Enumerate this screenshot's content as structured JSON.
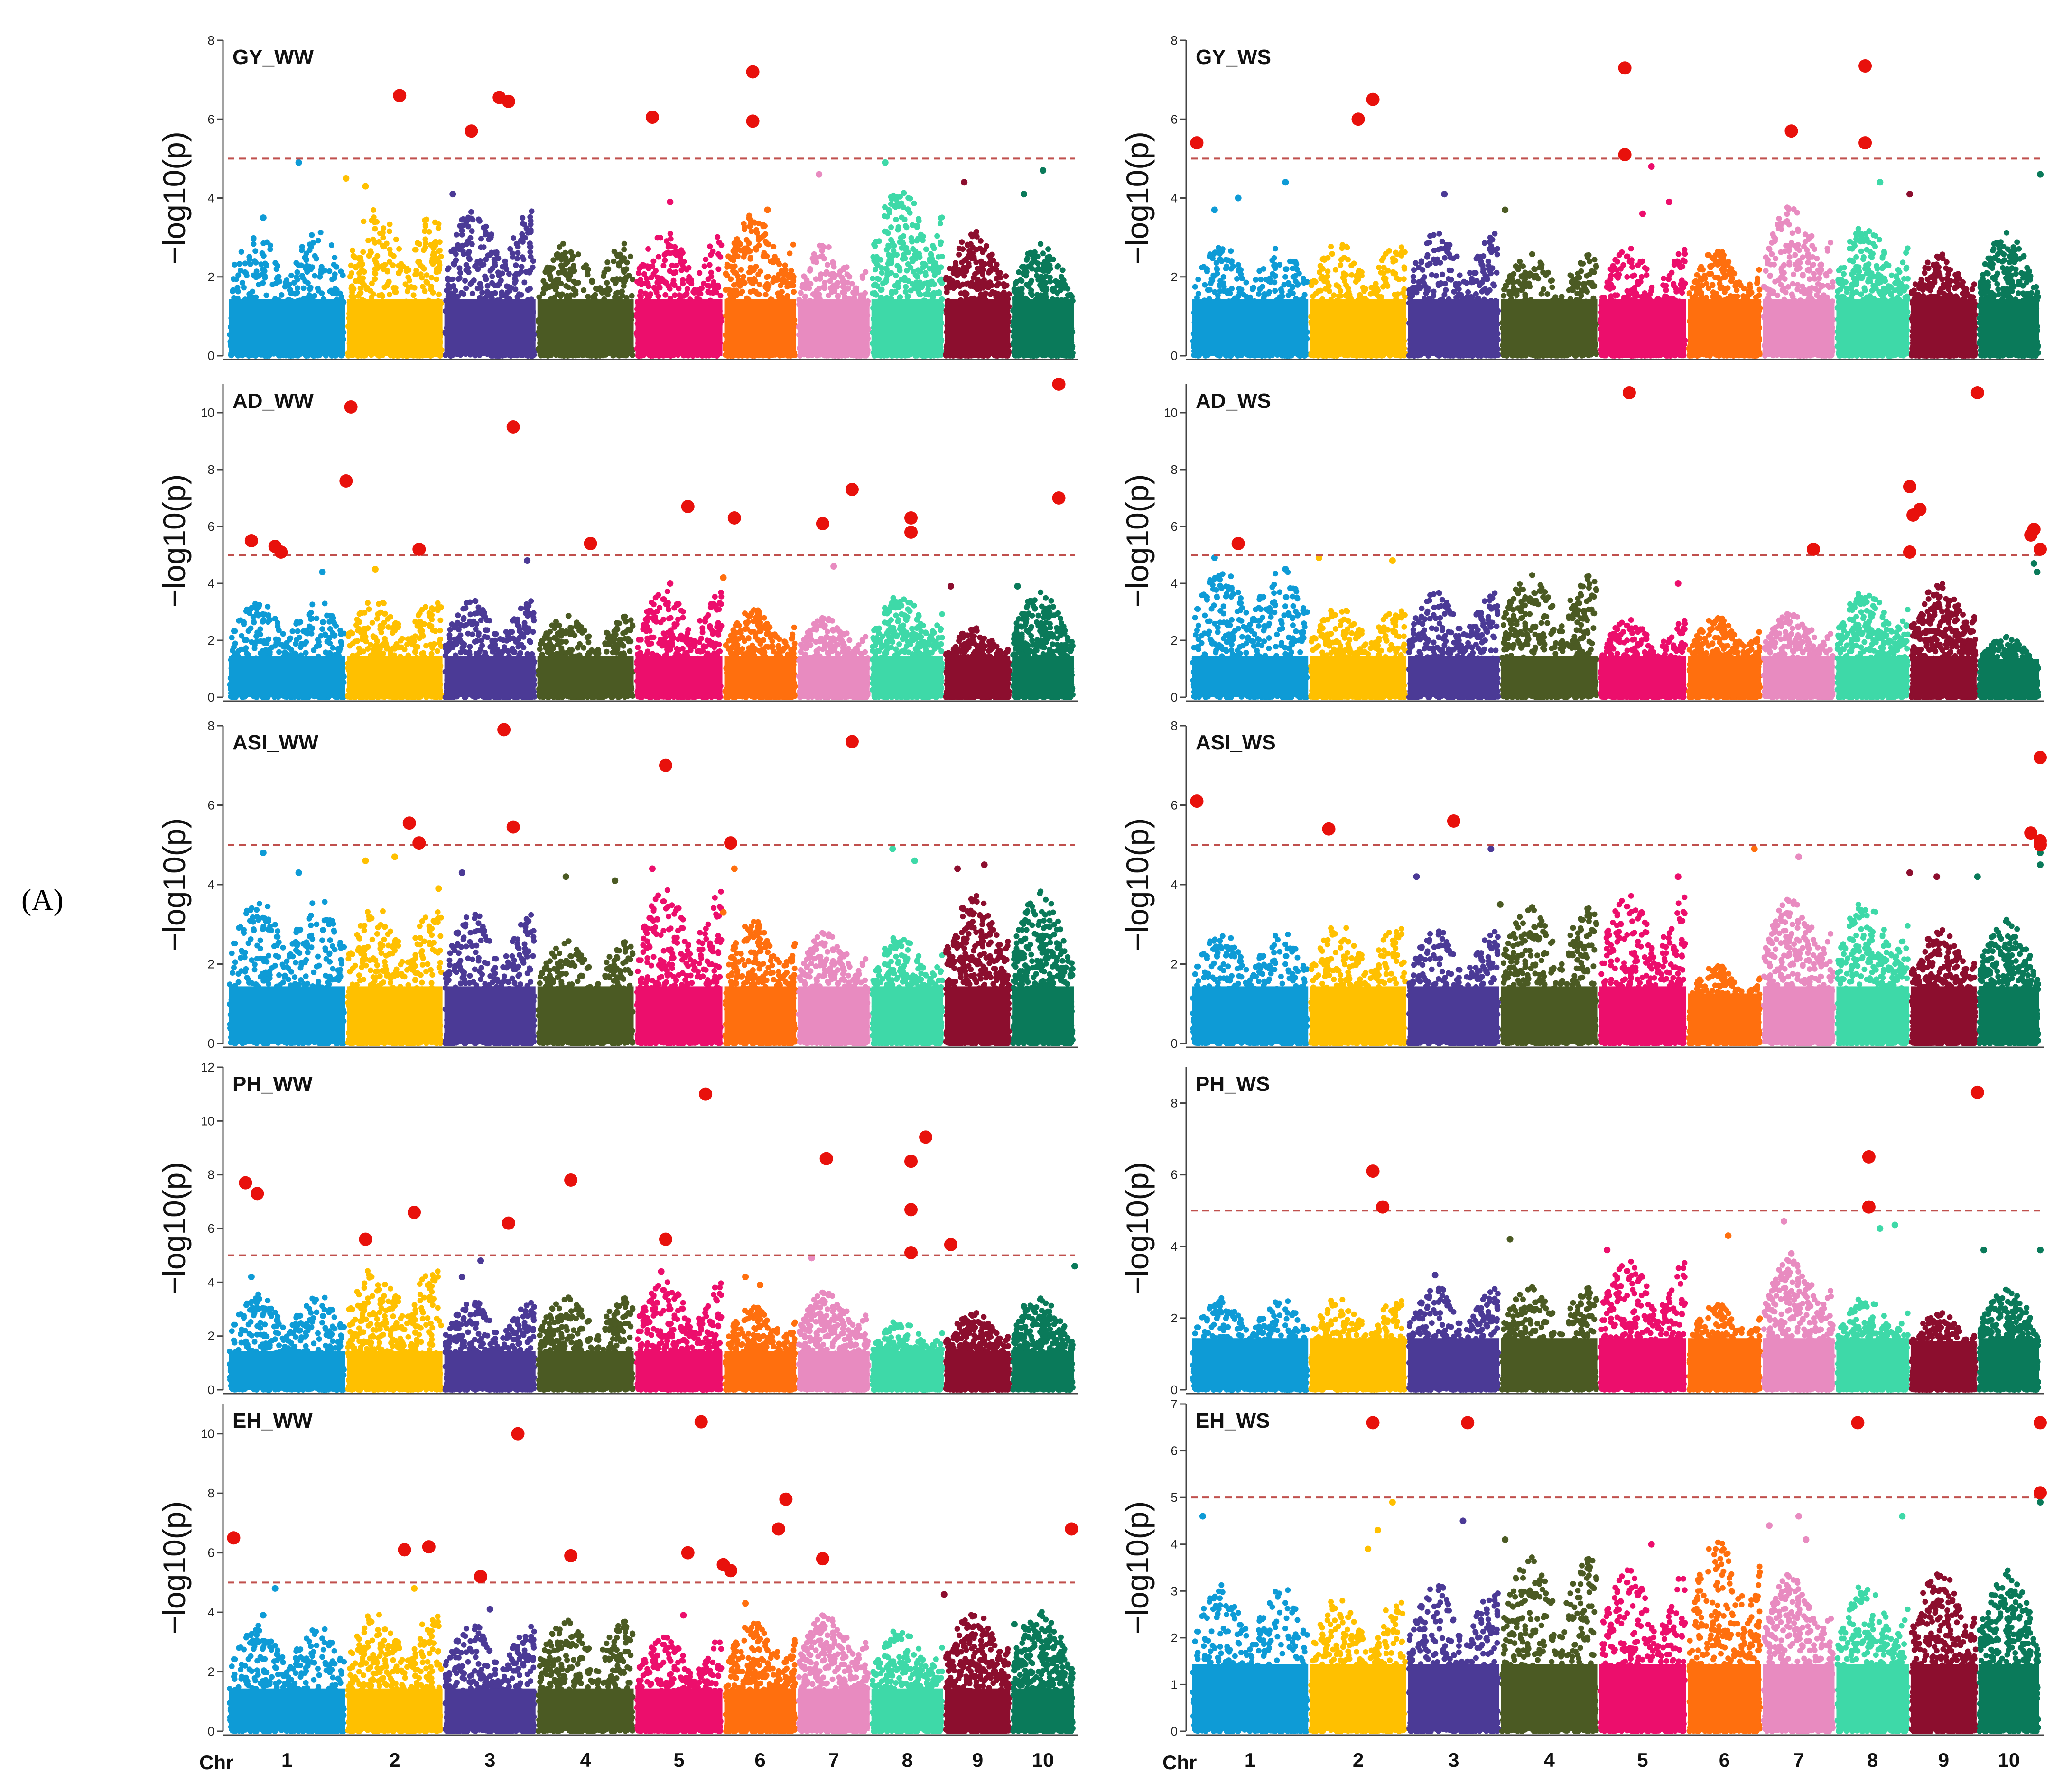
{
  "panel_label": "(A)",
  "chart_data": {
    "type": "scatter",
    "subtype": "manhattan",
    "chromosome_axis": {
      "prefix": "Chr",
      "chromosomes": [
        "1",
        "2",
        "3",
        "4",
        "5",
        "6",
        "7",
        "8",
        "9",
        "10"
      ],
      "left_column_chr_widths": [
        1.64,
        1.35,
        1.29,
        1.36,
        1.23,
        1.02,
        1.02,
        1.02,
        0.93,
        0.88
      ],
      "right_column_chr_widths": [
        1.64,
        1.36,
        1.29,
        1.36,
        1.23,
        1.04,
        1.02,
        1.03,
        0.94,
        0.87
      ]
    },
    "chr_colors": [
      "#0E9BD6",
      "#FFC000",
      "#4B3A96",
      "#4B5A23",
      "#EC0E6C",
      "#FF6F0E",
      "#E88BC0",
      "#3ED9A8",
      "#8C0E2E",
      "#0A7A5A"
    ],
    "highlight_color": "#E8110C",
    "threshold_color": "#C0504D",
    "ylabel": "−log10(p)",
    "panels": [
      {
        "id": "GY_WW",
        "title": "GY_WW",
        "ylim": [
          0,
          8
        ],
        "yticks": [
          0,
          2,
          4,
          6,
          8
        ],
        "threshold": 5,
        "bg_height": [
          2.2,
          2.6,
          2.6,
          2.0,
          2.2,
          2.5,
          2.0,
          3.0,
          2.2,
          2.0
        ],
        "hits": [
          [
            1.55,
            6.6
          ],
          [
            2.3,
            5.7
          ],
          [
            2.6,
            6.55
          ],
          [
            2.7,
            6.45
          ],
          [
            4.2,
            6.05
          ],
          [
            5.4,
            7.2
          ],
          [
            5.4,
            5.95
          ]
        ],
        "minor": [
          [
            0.3,
            3.5
          ],
          [
            0.6,
            4.9
          ],
          [
            1.0,
            4.5
          ],
          [
            1.2,
            4.3
          ],
          [
            2.1,
            4.1
          ],
          [
            4.4,
            3.9
          ],
          [
            5.6,
            3.7
          ],
          [
            6.3,
            4.6
          ],
          [
            7.2,
            4.9
          ],
          [
            8.3,
            4.4
          ],
          [
            9.2,
            4.1
          ],
          [
            9.5,
            4.7
          ]
        ]
      },
      {
        "id": "GY_WS",
        "title": "GY_WS",
        "ylim": [
          0,
          8
        ],
        "yticks": [
          0,
          2,
          4,
          6,
          8
        ],
        "threshold": 5,
        "bg_height": [
          2.0,
          2.0,
          2.2,
          1.8,
          1.9,
          1.9,
          2.7,
          2.3,
          1.8,
          2.2
        ],
        "hits": [
          [
            0.05,
            5.4
          ],
          [
            1.5,
            6.0
          ],
          [
            1.65,
            6.5
          ],
          [
            4.3,
            7.3
          ],
          [
            4.3,
            5.1
          ],
          [
            6.4,
            5.7
          ],
          [
            7.4,
            7.35
          ],
          [
            7.4,
            5.4
          ]
        ],
        "minor": [
          [
            0.2,
            3.7
          ],
          [
            0.4,
            4.0
          ],
          [
            0.8,
            4.4
          ],
          [
            2.4,
            4.1
          ],
          [
            3.05,
            3.7
          ],
          [
            4.6,
            4.8
          ],
          [
            4.8,
            3.9
          ],
          [
            4.5,
            3.6
          ],
          [
            7.6,
            4.4
          ],
          [
            8.0,
            4.1
          ],
          [
            10.2,
            4.6
          ]
        ]
      },
      {
        "id": "AD_WW",
        "title": "AD_WW",
        "ylim": [
          0,
          11
        ],
        "yticks": [
          0,
          2,
          4,
          6,
          8,
          10
        ],
        "threshold": 5,
        "bg_height": [
          2.4,
          2.4,
          2.4,
          2.0,
          2.6,
          2.2,
          2.0,
          2.5,
          1.7,
          2.6
        ],
        "hits": [
          [
            0.2,
            5.5
          ],
          [
            0.4,
            5.3
          ],
          [
            0.45,
            5.1
          ],
          [
            1.0,
            7.6
          ],
          [
            1.05,
            10.2
          ],
          [
            1.75,
            5.2
          ],
          [
            2.75,
            9.5
          ],
          [
            3.55,
            5.4
          ],
          [
            4.6,
            6.7
          ],
          [
            5.15,
            6.3
          ],
          [
            6.35,
            6.1
          ],
          [
            6.75,
            7.3
          ],
          [
            7.55,
            6.3
          ],
          [
            7.55,
            5.8
          ],
          [
            9.75,
            7.0
          ],
          [
            9.75,
            11.0
          ]
        ],
        "minor": [
          [
            0.8,
            4.4
          ],
          [
            1.3,
            4.5
          ],
          [
            2.9,
            4.8
          ],
          [
            4.4,
            4.0
          ],
          [
            5.0,
            4.2
          ],
          [
            6.5,
            4.6
          ],
          [
            8.1,
            3.9
          ],
          [
            9.1,
            3.9
          ]
        ]
      },
      {
        "id": "AD_WS",
        "title": "AD_WS",
        "ylim": [
          0,
          11
        ],
        "yticks": [
          0,
          2,
          4,
          6,
          8,
          10
        ],
        "threshold": 5,
        "bg_height": [
          3.2,
          2.2,
          2.6,
          3.0,
          1.9,
          2.0,
          2.1,
          2.6,
          2.8,
          1.5
        ],
        "hits": [
          [
            0.4,
            5.4
          ],
          [
            4.35,
            10.7
          ],
          [
            6.7,
            5.2
          ],
          [
            8.0,
            7.4
          ],
          [
            8.0,
            5.1
          ],
          [
            8.05,
            6.4
          ],
          [
            8.15,
            6.6
          ],
          [
            9.0,
            10.7
          ],
          [
            9.85,
            5.7
          ],
          [
            9.9,
            5.9
          ],
          [
            10.4,
            5.2
          ]
        ],
        "minor": [
          [
            0.2,
            4.9
          ],
          [
            0.8,
            4.5
          ],
          [
            1.1,
            4.9
          ],
          [
            1.85,
            4.8
          ],
          [
            4.9,
            4.0
          ],
          [
            9.9,
            4.7
          ],
          [
            9.95,
            4.4
          ]
        ]
      },
      {
        "id": "ASI_WW",
        "title": "ASI_WW",
        "ylim": [
          0,
          8
        ],
        "yticks": [
          0,
          2,
          4,
          6,
          8
        ],
        "threshold": 5,
        "bg_height": [
          2.6,
          2.4,
          2.3,
          1.8,
          2.7,
          2.2,
          2.0,
          1.9,
          2.6,
          2.7
        ],
        "hits": [
          [
            1.65,
            5.55
          ],
          [
            1.75,
            5.05
          ],
          [
            2.65,
            7.9
          ],
          [
            2.75,
            5.45
          ],
          [
            4.35,
            7.0
          ],
          [
            5.1,
            5.05
          ],
          [
            6.75,
            7.6
          ]
        ],
        "minor": [
          [
            0.3,
            4.8
          ],
          [
            0.6,
            4.3
          ],
          [
            1.2,
            4.6
          ],
          [
            1.5,
            4.7
          ],
          [
            1.95,
            3.9
          ],
          [
            2.2,
            4.3
          ],
          [
            3.3,
            4.2
          ],
          [
            3.8,
            4.1
          ],
          [
            4.2,
            4.4
          ],
          [
            5.0,
            3.3
          ],
          [
            7.3,
            4.9
          ],
          [
            7.6,
            4.6
          ],
          [
            8.2,
            4.4
          ],
          [
            8.6,
            4.5
          ],
          [
            5.15,
            4.4
          ]
        ]
      },
      {
        "id": "ASI_WS",
        "title": "ASI_WS",
        "ylim": [
          0,
          8
        ],
        "yticks": [
          0,
          2,
          4,
          6,
          8
        ],
        "threshold": 5,
        "bg_height": [
          2.0,
          2.1,
          2.0,
          2.4,
          2.6,
          1.4,
          2.6,
          2.5,
          2.0,
          2.2
        ],
        "hits": [
          [
            0.05,
            6.1
          ],
          [
            1.2,
            5.4
          ],
          [
            2.5,
            5.6
          ],
          [
            10.1,
            7.2
          ],
          [
            9.85,
            5.3
          ],
          [
            10.45,
            5.0
          ],
          [
            10.85,
            5.1
          ]
        ],
        "minor": [
          [
            2.1,
            4.2
          ],
          [
            2.9,
            4.9
          ],
          [
            3.0,
            3.5
          ],
          [
            4.9,
            4.2
          ],
          [
            5.9,
            4.9
          ],
          [
            6.5,
            4.7
          ],
          [
            8.0,
            4.3
          ],
          [
            8.4,
            4.2
          ],
          [
            9.0,
            4.2
          ],
          [
            10.15,
            4.5
          ],
          [
            10.15,
            4.8
          ]
        ]
      },
      {
        "id": "PH_WW",
        "title": "PH_WW",
        "ylim": [
          0,
          12
        ],
        "yticks": [
          0,
          2,
          4,
          6,
          8,
          10,
          12
        ],
        "threshold": 5,
        "bg_height": [
          2.5,
          3.2,
          2.3,
          2.4,
          2.8,
          2.2,
          2.6,
          1.8,
          2.0,
          2.4
        ],
        "hits": [
          [
            0.15,
            7.7
          ],
          [
            0.25,
            7.3
          ],
          [
            1.2,
            5.6
          ],
          [
            1.7,
            6.6
          ],
          [
            2.7,
            6.2
          ],
          [
            3.35,
            7.8
          ],
          [
            4.35,
            5.6
          ],
          [
            4.8,
            11.0
          ],
          [
            6.4,
            8.6
          ],
          [
            7.55,
            8.5
          ],
          [
            7.55,
            6.7
          ],
          [
            7.55,
            5.1
          ],
          [
            7.75,
            9.4
          ],
          [
            8.1,
            5.4
          ]
        ],
        "minor": [
          [
            0.2,
            4.2
          ],
          [
            2.2,
            4.2
          ],
          [
            2.4,
            4.8
          ],
          [
            4.3,
            4.4
          ],
          [
            5.3,
            4.2
          ],
          [
            5.5,
            3.9
          ],
          [
            6.2,
            4.9
          ],
          [
            9.2,
            3.1
          ],
          [
            10.1,
            4.6
          ]
        ]
      },
      {
        "id": "PH_WS",
        "title": "PH_WS",
        "ylim": [
          0,
          9
        ],
        "yticks": [
          0,
          2,
          4,
          6,
          8
        ],
        "threshold": 5,
        "bg_height": [
          1.8,
          1.8,
          2.0,
          2.0,
          2.5,
          1.7,
          2.6,
          1.8,
          1.5,
          2.0
        ],
        "hits": [
          [
            1.65,
            6.1
          ],
          [
            1.75,
            5.1
          ],
          [
            7.45,
            6.5
          ],
          [
            7.45,
            5.1
          ],
          [
            9.0,
            8.3
          ]
        ],
        "minor": [
          [
            2.3,
            3.2
          ],
          [
            3.1,
            4.2
          ],
          [
            4.1,
            3.9
          ],
          [
            5.55,
            4.3
          ],
          [
            6.3,
            4.7
          ],
          [
            6.4,
            3.8
          ],
          [
            7.6,
            4.5
          ],
          [
            7.8,
            4.6
          ],
          [
            9.1,
            3.9
          ],
          [
            10.1,
            3.9
          ]
        ]
      },
      {
        "id": "EH_WW",
        "title": "EH_WW",
        "ylim": [
          0,
          11
        ],
        "yticks": [
          0,
          2,
          4,
          6,
          8,
          10
        ],
        "threshold": 5,
        "bg_height": [
          2.5,
          2.8,
          2.5,
          2.6,
          2.2,
          2.6,
          2.8,
          2.4,
          2.8,
          2.8
        ],
        "hits": [
          [
            0.05,
            6.5
          ],
          [
            1.6,
            6.1
          ],
          [
            1.85,
            6.2
          ],
          [
            2.4,
            5.2
          ],
          [
            2.8,
            10.0
          ],
          [
            3.35,
            5.9
          ],
          [
            4.6,
            6.0
          ],
          [
            4.75,
            10.4
          ],
          [
            5.0,
            5.6
          ],
          [
            5.1,
            5.4
          ],
          [
            5.75,
            6.8
          ],
          [
            5.85,
            7.8
          ],
          [
            6.35,
            5.8
          ],
          [
            9.95,
            6.8
          ]
        ],
        "minor": [
          [
            0.3,
            3.9
          ],
          [
            0.4,
            4.8
          ],
          [
            1.7,
            4.8
          ],
          [
            2.5,
            4.1
          ],
          [
            4.55,
            3.9
          ],
          [
            5.3,
            4.3
          ],
          [
            8.0,
            4.6
          ],
          [
            9.05,
            3.6
          ],
          [
            9.2,
            3.5
          ]
        ]
      },
      {
        "id": "EH_WS",
        "title": "EH_WS",
        "ylim": [
          0,
          7
        ],
        "yticks": [
          0,
          1,
          2,
          3,
          4,
          5,
          6,
          7
        ],
        "threshold": 5,
        "bg_height": [
          2.2,
          2.0,
          2.2,
          2.6,
          2.4,
          2.9,
          2.4,
          2.2,
          2.4,
          2.4
        ],
        "hits": [
          [
            1.65,
            6.6
          ],
          [
            2.65,
            6.6
          ],
          [
            7.3,
            6.6
          ],
          [
            10.0,
            6.6
          ],
          [
            10.2,
            5.1
          ]
        ],
        "minor": [
          [
            0.1,
            4.6
          ],
          [
            1.6,
            3.9
          ],
          [
            1.7,
            4.3
          ],
          [
            1.85,
            4.9
          ],
          [
            2.6,
            4.5
          ],
          [
            3.05,
            4.1
          ],
          [
            4.6,
            4.0
          ],
          [
            6.1,
            4.4
          ],
          [
            6.5,
            4.6
          ],
          [
            6.6,
            4.1
          ],
          [
            7.9,
            4.6
          ],
          [
            10.95,
            4.9
          ]
        ]
      }
    ]
  }
}
